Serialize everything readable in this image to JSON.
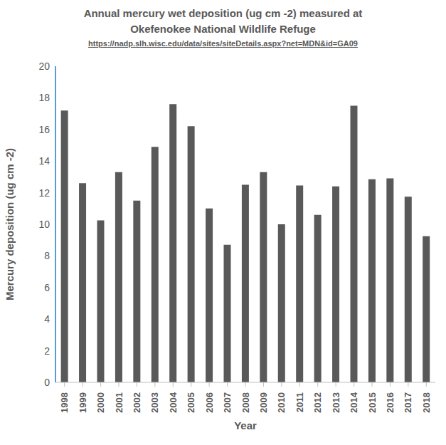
{
  "chart_data": {
    "type": "bar",
    "title": "Annual mercury  wet deposition (ug cm -2) measured at Okefenokee National Wildlife Refuge",
    "subtitle": "https://nadp.slh.wisc.edu/data/sites/siteDetails.aspx?net=MDN&id=GA09",
    "x_label": "Year",
    "y_label": "Mercury deposition (ug cm -2)",
    "categories": [
      "1998",
      "1999",
      "2000",
      "2001",
      "2002",
      "2003",
      "2004",
      "2005",
      "2006",
      "2007",
      "2008",
      "2009",
      "2010",
      "2011",
      "2012",
      "2013",
      "2014",
      "2015",
      "2016",
      "2017",
      "2018"
    ],
    "values": [
      17.2,
      12.6,
      10.25,
      13.3,
      11.5,
      14.9,
      17.6,
      16.2,
      11.0,
      8.7,
      12.5,
      13.3,
      10.0,
      12.45,
      10.6,
      12.4,
      17.5,
      12.85,
      12.9,
      11.75,
      9.25
    ],
    "color": "#595959",
    "ylim": [
      0,
      20
    ],
    "yticks": [
      0,
      2,
      4,
      6,
      8,
      10,
      12,
      14,
      16,
      18,
      20
    ],
    "grid": false,
    "data_labels": false
  }
}
